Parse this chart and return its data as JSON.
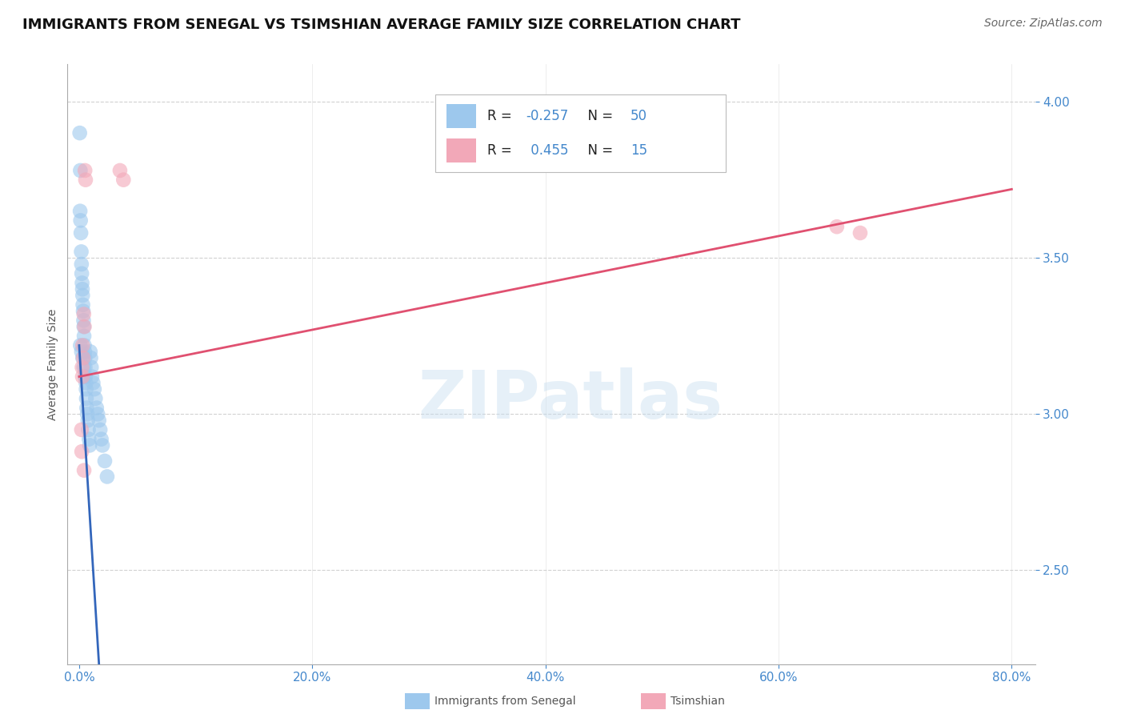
{
  "title": "IMMIGRANTS FROM SENEGAL VS TSIMSHIAN AVERAGE FAMILY SIZE CORRELATION CHART",
  "source": "Source: ZipAtlas.com",
  "ylabel": "Average Family Size",
  "ytick_values": [
    2.5,
    3.0,
    3.5,
    4.0
  ],
  "ytick_labels": [
    "2.50",
    "3.00",
    "3.50",
    "4.00"
  ],
  "ylim": [
    2.2,
    4.12
  ],
  "xlim": [
    -1.0,
    82.0
  ],
  "xtick_values": [
    0.0,
    20.0,
    40.0,
    60.0,
    80.0
  ],
  "xtick_labels": [
    "0.0%",
    "20.0%",
    "40.0%",
    "60.0%",
    "80.0%"
  ],
  "blue_scatter_x": [
    0.05,
    0.1,
    0.08,
    0.12,
    0.15,
    0.18,
    0.2,
    0.22,
    0.25,
    0.28,
    0.3,
    0.32,
    0.35,
    0.38,
    0.4,
    0.42,
    0.45,
    0.48,
    0.5,
    0.52,
    0.55,
    0.58,
    0.6,
    0.62,
    0.65,
    0.7,
    0.75,
    0.8,
    0.85,
    0.9,
    0.95,
    1.0,
    1.05,
    1.1,
    1.2,
    1.3,
    1.4,
    1.5,
    1.6,
    1.7,
    1.8,
    1.9,
    2.0,
    2.2,
    2.4,
    0.1,
    0.2,
    0.3,
    0.4,
    0.5
  ],
  "blue_scatter_y": [
    3.9,
    3.78,
    3.65,
    3.62,
    3.58,
    3.52,
    3.48,
    3.45,
    3.42,
    3.4,
    3.38,
    3.35,
    3.33,
    3.3,
    3.28,
    3.25,
    3.22,
    3.2,
    3.18,
    3.15,
    3.12,
    3.1,
    3.08,
    3.05,
    3.02,
    3.0,
    2.98,
    2.95,
    2.92,
    2.9,
    3.2,
    3.18,
    3.15,
    3.12,
    3.1,
    3.08,
    3.05,
    3.02,
    3.0,
    2.98,
    2.95,
    2.92,
    2.9,
    2.85,
    2.8,
    3.22,
    3.2,
    3.18,
    3.15,
    3.12
  ],
  "pink_scatter_x": [
    0.5,
    0.55,
    3.5,
    3.8,
    0.4,
    0.45,
    0.3,
    0.35,
    0.25,
    0.28,
    0.2,
    0.22,
    65.0,
    67.0,
    0.42
  ],
  "pink_scatter_y": [
    3.78,
    3.75,
    3.78,
    3.75,
    3.32,
    3.28,
    3.22,
    3.18,
    3.15,
    3.12,
    2.95,
    2.88,
    3.6,
    3.58,
    2.82
  ],
  "blue_color": "#9dc8ed",
  "pink_color": "#f2a8b8",
  "blue_line_color": "#3366bb",
  "pink_line_color": "#e05070",
  "r_blue": -0.257,
  "r_pink": 0.455,
  "n_blue": 50,
  "n_pink": 15,
  "blue_reg_intercept": 3.22,
  "blue_reg_slope": -0.6,
  "pink_reg_intercept": 3.12,
  "pink_reg_slope": 0.0075,
  "blue_solid_x_end": 2.5,
  "blue_dashed_x_end": 28.0,
  "watermark_text": "ZIPatlas",
  "watermark_color": "#c8dff0",
  "grid_color": "#cccccc",
  "tick_color": "#4488cc",
  "title_fontsize": 13,
  "source_fontsize": 10,
  "axis_label_fontsize": 10,
  "tick_fontsize": 11,
  "legend_fontsize": 12
}
